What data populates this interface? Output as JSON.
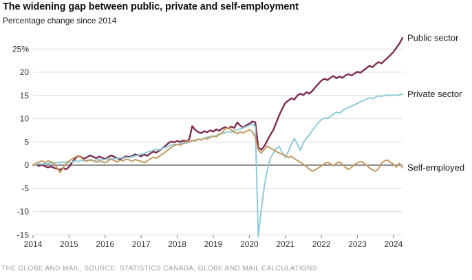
{
  "header": {
    "title": "The widening gap between public, private and self-employment",
    "subtitle": "Percentage change since 2014"
  },
  "footer": {
    "source": "THE GLOBE AND MAIL, SOURCE: STATISTICS CANADA, GLOBE AND MAIL CALCULATIONS"
  },
  "colors": {
    "public_sector": "#7d2b50",
    "private_sector": "#8ecbd7",
    "self_employed": "#c49a62",
    "zero_line": "#4d4d4d",
    "gridline": "#dcdcdc",
    "tick_mark": "#888888"
  },
  "chart_data": {
    "type": "line",
    "title": "The widening gap between public, private and self-employment",
    "subtitle": "Percentage change since 2014",
    "grid": true,
    "legend_position": "right-of-line-ends",
    "x_unit": "months since Jan 2014",
    "x_tick_labels": [
      "2014",
      "2015",
      "2016",
      "2017",
      "2018",
      "2019",
      "2020",
      "2021",
      "2022",
      "2023",
      "2024"
    ],
    "y_ticks": [
      25,
      20,
      15,
      10,
      5,
      0,
      -5,
      -10,
      -15
    ],
    "y_tick_labels": [
      "25%",
      "20",
      "15",
      "10",
      "5",
      "0",
      "-5",
      "-10",
      "-15"
    ],
    "ylim": [
      -16.5,
      29
    ],
    "series": [
      {
        "name": "Public sector",
        "color": "#7d2b50",
        "stroke_width": 2.4,
        "values": [
          0.0,
          0.2,
          -0.2,
          0.1,
          -0.3,
          -0.5,
          -0.3,
          -0.6,
          -0.8,
          -1.0,
          -0.6,
          -0.9,
          -0.4,
          0.6,
          1.4,
          2.0,
          1.7,
          1.4,
          1.7,
          2.1,
          1.8,
          1.5,
          1.8,
          1.6,
          1.3,
          1.7,
          2.1,
          1.8,
          1.5,
          1.2,
          1.6,
          1.9,
          1.7,
          2.0,
          2.3,
          2.1,
          1.9,
          2.3,
          2.0,
          2.5,
          2.9,
          2.7,
          3.1,
          3.6,
          4.1,
          4.7,
          5.1,
          4.9,
          5.2,
          5.0,
          5.3,
          5.1,
          5.5,
          8.4,
          7.6,
          7.1,
          6.9,
          7.3,
          7.1,
          7.5,
          7.2,
          7.7,
          7.4,
          7.9,
          8.2,
          7.9,
          8.3,
          8.0,
          9.2,
          8.5,
          8.1,
          8.6,
          8.9,
          9.4,
          9.2,
          3.8,
          3.3,
          4.1,
          5.3,
          6.5,
          7.6,
          9.2,
          10.8,
          12.2,
          13.4,
          13.9,
          14.4,
          14.1,
          15.0,
          15.4,
          15.1,
          15.7,
          15.4,
          16.0,
          16.8,
          17.5,
          18.2,
          18.6,
          18.3,
          18.8,
          19.2,
          18.7,
          19.1,
          18.8,
          19.3,
          19.6,
          19.3,
          19.7,
          20.1,
          19.9,
          20.4,
          20.9,
          21.4,
          21.1,
          21.7,
          22.2,
          21.9,
          22.5,
          23.1,
          23.7,
          24.4,
          25.3,
          26.2,
          27.4
        ]
      },
      {
        "name": "Private sector",
        "color": "#8ecbd7",
        "stroke_width": 2.0,
        "values": [
          0.0,
          0.1,
          0.3,
          0.2,
          0.4,
          0.3,
          0.5,
          0.4,
          0.6,
          0.5,
          0.7,
          0.6,
          0.5,
          0.7,
          0.9,
          0.8,
          1.0,
          0.9,
          1.1,
          1.0,
          0.9,
          1.1,
          1.2,
          1.1,
          1.2,
          1.4,
          1.3,
          1.5,
          1.4,
          1.6,
          1.5,
          1.7,
          1.6,
          1.8,
          2.0,
          2.2,
          2.3,
          2.5,
          2.8,
          3.0,
          3.2,
          3.4,
          3.3,
          3.6,
          3.8,
          4.0,
          4.3,
          4.5,
          4.4,
          4.6,
          4.8,
          4.7,
          5.0,
          5.2,
          5.4,
          5.6,
          5.5,
          5.8,
          6.0,
          6.2,
          6.1,
          6.4,
          6.6,
          6.8,
          7.0,
          7.2,
          7.1,
          7.4,
          7.6,
          7.8,
          8.0,
          8.3,
          8.6,
          8.9,
          8.3,
          -15.5,
          -9.5,
          -4.5,
          -1.0,
          1.5,
          2.6,
          3.6,
          4.0,
          2.6,
          1.6,
          3.0,
          4.5,
          5.7,
          4.6,
          3.2,
          4.8,
          5.8,
          6.5,
          7.5,
          8.3,
          9.2,
          9.8,
          10.2,
          10.0,
          10.5,
          11.0,
          11.4,
          11.2,
          11.7,
          12.1,
          12.4,
          12.7,
          13.0,
          13.3,
          13.6,
          13.9,
          14.2,
          14.5,
          14.3,
          14.6,
          14.9,
          14.8,
          15.0,
          15.1,
          15.0,
          15.1,
          15.0,
          15.2,
          15.3
        ]
      },
      {
        "name": "Self-employed",
        "color": "#c49a62",
        "stroke_width": 2.0,
        "values": [
          0.0,
          0.4,
          0.7,
          0.9,
          0.6,
          0.9,
          0.7,
          0.4,
          -0.6,
          -1.6,
          -0.7,
          0.4,
          0.9,
          1.3,
          1.7,
          2.0,
          1.6,
          1.1,
          0.8,
          1.2,
          1.0,
          0.6,
          0.9,
          0.7,
          0.5,
          0.9,
          1.3,
          1.0,
          0.7,
          1.1,
          0.9,
          1.3,
          1.1,
          0.8,
          1.2,
          1.0,
          0.8,
          0.5,
          0.9,
          1.3,
          1.7,
          1.5,
          1.9,
          2.3,
          2.8,
          3.3,
          3.8,
          4.2,
          4.5,
          4.3,
          4.7,
          5.1,
          4.9,
          5.4,
          5.2,
          5.6,
          5.4,
          5.8,
          5.6,
          6.0,
          6.3,
          6.1,
          6.6,
          7.0,
          7.8,
          8.1,
          7.6,
          7.1,
          6.8,
          7.2,
          6.9,
          7.3,
          7.6,
          7.2,
          6.0,
          3.2,
          2.6,
          3.4,
          4.1,
          3.7,
          3.3,
          2.9,
          2.6,
          2.3,
          2.1,
          1.6,
          1.9,
          1.4,
          1.0,
          0.6,
          0.2,
          -0.3,
          -0.9,
          -1.3,
          -1.0,
          -0.6,
          -0.2,
          0.3,
          0.6,
          0.3,
          -0.2,
          0.4,
          0.7,
          0.2,
          -0.5,
          -0.9,
          -0.5,
          0.1,
          0.5,
          0.8,
          0.5,
          0.0,
          -0.6,
          -1.0,
          -1.3,
          -0.8,
          0.4,
          0.9,
          1.1,
          0.6,
          0.2,
          -0.4,
          0.4,
          -0.5
        ]
      }
    ]
  }
}
